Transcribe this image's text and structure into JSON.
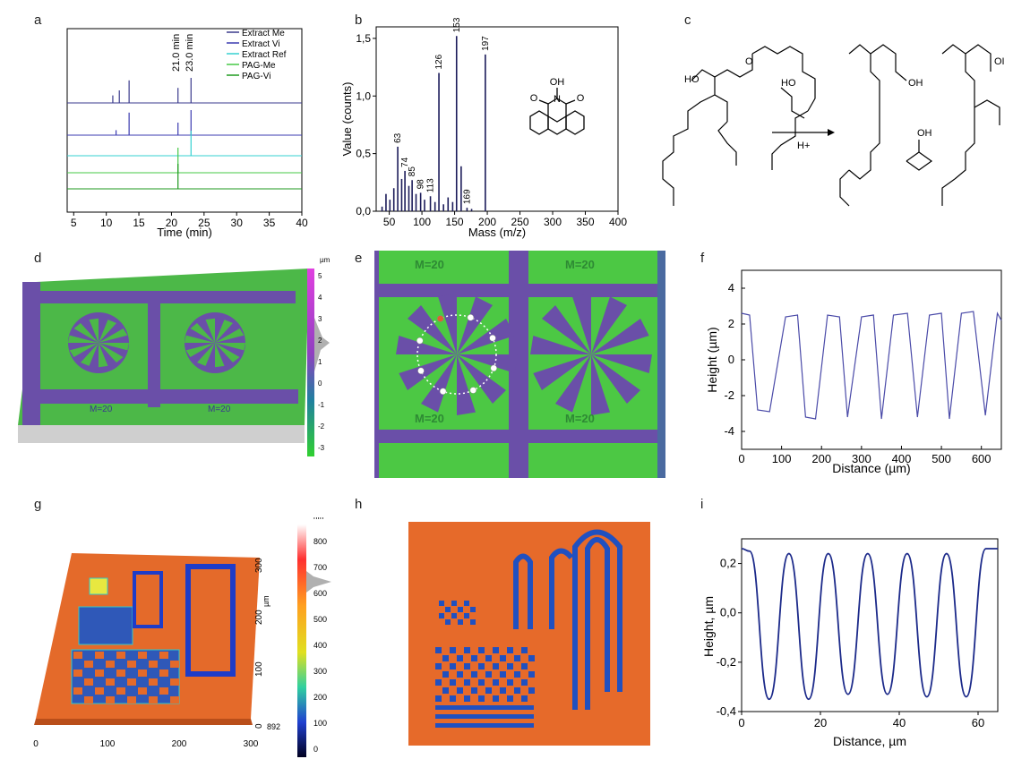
{
  "panels": {
    "a": "a",
    "b": "b",
    "c": "c",
    "d": "d",
    "e": "e",
    "f": "f",
    "g": "g",
    "h": "h",
    "i": "i"
  },
  "panel_a": {
    "xlabel": "Time (min)",
    "ticks": [
      "5",
      "10",
      "15",
      "20",
      "25",
      "30",
      "35",
      "40"
    ],
    "annotations": [
      "21.0 min",
      "23.0 min"
    ],
    "legend": [
      {
        "name": "Extract Me",
        "color": "#3a3a8c"
      },
      {
        "name": "Extract Vi",
        "color": "#3b3bb0"
      },
      {
        "name": "Extract Ref",
        "color": "#35d0d0"
      },
      {
        "name": "PAG-Me",
        "color": "#46c846"
      },
      {
        "name": "PAG-Vi",
        "color": "#1f9a1f"
      }
    ]
  },
  "panel_b": {
    "xlabel": "Mass (m/z)",
    "ylabel": "Value (counts)",
    "xticks": [
      "50",
      "100",
      "150",
      "200",
      "250",
      "300",
      "350",
      "400"
    ],
    "yticks": [
      "0,0",
      "0,5",
      "1,0",
      "1,5"
    ],
    "peak_labels": [
      "63",
      "74",
      "85",
      "98",
      "113",
      "126",
      "153",
      "169",
      "197"
    ],
    "structure_labels": [
      "OH",
      "N",
      "O",
      "O"
    ]
  },
  "panel_c": {
    "reaction_conditions": "H+",
    "atom_labels": [
      "HO",
      "O",
      "OH",
      "OH",
      "HO",
      "OI"
    ]
  },
  "panel_d": {
    "scale_unit": "µm",
    "scale_ticks": [
      "5",
      "4",
      "3",
      "2",
      "1",
      "0",
      "-1",
      "-2",
      "-3"
    ],
    "marks": [
      "M=20",
      "M=20"
    ]
  },
  "panel_e": {
    "marks": [
      "M=20",
      "M=20",
      "M=20",
      "M=20"
    ]
  },
  "panel_f": {
    "ylabel": "Height (µm)",
    "xlabel": "Distance (µm)",
    "xticks": [
      "0",
      "100",
      "200",
      "300",
      "400",
      "500",
      "600"
    ],
    "yticks": [
      "4",
      "2",
      "0",
      "-2",
      "-4"
    ]
  },
  "panel_g": {
    "scale_unit": "nm",
    "scale_ticks": [
      "800",
      "700",
      "600",
      "500",
      "400",
      "300",
      "200",
      "100",
      "0"
    ],
    "axis_x_ticks": [
      "0",
      "100",
      "200",
      "300"
    ],
    "axis_y_ticks": [
      "300",
      "200",
      "100",
      "0"
    ],
    "axis_unit": "µm",
    "corner_value": "892"
  },
  "panel_i": {
    "ylabel": "Height, µm",
    "xlabel": "Distance, µm",
    "xticks": [
      "0",
      "20",
      "40",
      "60"
    ],
    "yticks": [
      "0,2",
      "0,0",
      "-0,2",
      "-0,4"
    ]
  },
  "chart_data": [
    {
      "type": "line",
      "xlabel": "Time (min)",
      "ylabel": "",
      "xlim": [
        4,
        40
      ],
      "series": [
        {
          "name": "Extract Me",
          "x": [
            11,
            12,
            13.5,
            21,
            23
          ],
          "values": [
            0.3,
            0.5,
            0.9,
            0.6,
            1.0
          ]
        },
        {
          "name": "Extract Vi",
          "x": [
            11.5,
            13.5,
            21,
            23
          ],
          "values": [
            0.2,
            0.9,
            0.5,
            1.0
          ]
        },
        {
          "name": "Extract Ref",
          "x": [
            23
          ],
          "values": [
            1.0
          ]
        },
        {
          "name": "PAG-Me",
          "x": [
            21
          ],
          "values": [
            1.0
          ]
        },
        {
          "name": "PAG-Vi",
          "x": [
            21
          ],
          "values": [
            1.0
          ]
        }
      ]
    },
    {
      "type": "bar",
      "xlabel": "Mass (m/z)",
      "ylabel": "Value (counts)",
      "xlim": [
        30,
        400
      ],
      "ylim": [
        0,
        1.6
      ],
      "x": [
        39,
        45,
        51,
        57,
        63,
        69,
        74,
        80,
        85,
        91,
        98,
        104,
        113,
        120,
        126,
        133,
        140,
        147,
        153,
        160,
        169,
        176,
        197
      ],
      "values": [
        0.04,
        0.15,
        0.1,
        0.2,
        0.56,
        0.28,
        0.35,
        0.22,
        0.27,
        0.15,
        0.16,
        0.1,
        0.13,
        0.08,
        1.2,
        0.06,
        0.12,
        0.08,
        1.52,
        0.39,
        0.03,
        0.02,
        1.36
      ]
    },
    {
      "type": "line",
      "xlabel": "Distance (µm)",
      "ylabel": "Height (µm)",
      "xlim": [
        0,
        650
      ],
      "ylim": [
        -5,
        5
      ],
      "series": [
        {
          "x": [
            0,
            20,
            40,
            70,
            110,
            140,
            160,
            185,
            215,
            245,
            265,
            300,
            330,
            350,
            380,
            415,
            440,
            470,
            500,
            520,
            550,
            580,
            610,
            640,
            650
          ],
          "values": [
            2.6,
            2.5,
            -2.8,
            -2.9,
            2.4,
            2.5,
            -3.2,
            -3.3,
            2.5,
            2.4,
            -3.2,
            2.4,
            2.5,
            -3.3,
            2.5,
            2.6,
            -3.2,
            2.5,
            2.6,
            -3.3,
            2.6,
            2.7,
            -3.1,
            2.6,
            2.2
          ]
        }
      ]
    },
    {
      "type": "line",
      "xlabel": "Distance, µm",
      "ylabel": "Height, µm",
      "xlim": [
        0,
        65
      ],
      "ylim": [
        -0.4,
        0.3
      ],
      "series": [
        {
          "x": [
            0,
            2,
            7,
            12,
            17,
            22,
            27,
            32,
            37,
            42,
            47,
            52,
            57,
            62,
            65
          ],
          "values": [
            0.26,
            0.25,
            -0.35,
            0.24,
            -0.35,
            0.24,
            -0.33,
            0.24,
            -0.33,
            0.24,
            -0.34,
            0.24,
            -0.34,
            0.26,
            0.26
          ]
        }
      ]
    }
  ]
}
